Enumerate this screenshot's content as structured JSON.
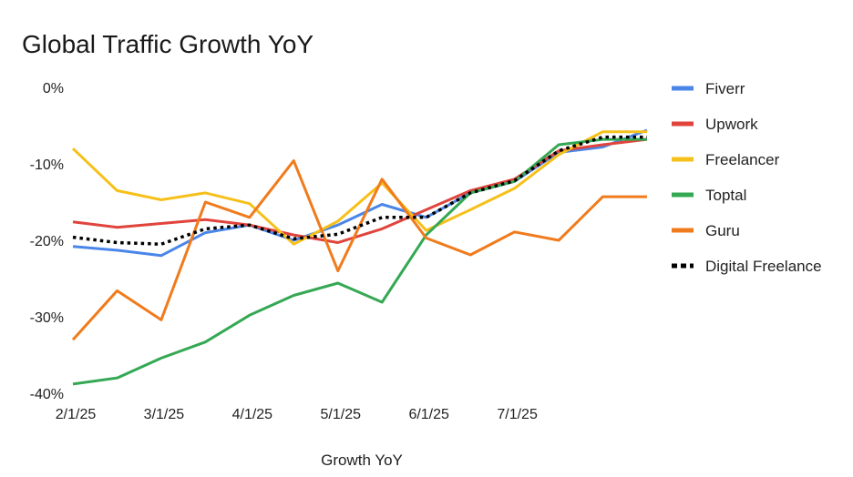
{
  "chart_data": {
    "type": "line",
    "title": "Global Traffic Growth YoY",
    "xlabel": "Growth YoY",
    "ylabel": "",
    "ylim": [
      -40,
      0
    ],
    "yticks": [
      0,
      -10,
      -20,
      -30,
      -40
    ],
    "ytick_labels": [
      "0%",
      "-10%",
      "-20%",
      "-30%",
      "-40%"
    ],
    "x": [
      "1/27/25",
      "2/10/25",
      "2/24/25",
      "3/10/25",
      "3/24/25",
      "4/7/25",
      "4/21/25",
      "5/5/25",
      "5/19/25",
      "6/2/25",
      "6/16/25",
      "6/30/25",
      "7/14/25",
      "7/28/25"
    ],
    "xticks": [
      "2/1/25",
      "3/1/25",
      "4/1/25",
      "5/1/25",
      "6/1/25",
      "7/1/25"
    ],
    "xtick_positions": [
      "1/27/25",
      "2/24/25",
      "3/24/25",
      "4/21/25",
      "5/19/25",
      "6/16/25"
    ],
    "legend_position": "right",
    "grid": false,
    "series": [
      {
        "name": "Fiverr",
        "color": "#4a86e8",
        "dash": false,
        "values": [
          -20.8,
          -21.3,
          -22.0,
          -19.0,
          -18.0,
          -20.0,
          -18.0,
          -15.3,
          -17.0,
          -13.8,
          -12.3,
          -8.5,
          -7.8,
          -5.6
        ]
      },
      {
        "name": "Upwork",
        "color": "#e0443c",
        "dash": false,
        "values": [
          -17.6,
          -18.3,
          -17.8,
          -17.3,
          -18.0,
          -19.3,
          -20.3,
          -18.5,
          -16.0,
          -13.5,
          -12.0,
          -8.3,
          -7.5,
          -6.8
        ]
      },
      {
        "name": "Freelancer",
        "color": "#f6c01a",
        "dash": false,
        "values": [
          -8.0,
          -13.5,
          -14.7,
          -13.8,
          -15.2,
          -20.5,
          -17.5,
          -12.5,
          -18.7,
          -16.0,
          -13.2,
          -8.8,
          -5.8,
          -5.8
        ]
      },
      {
        "name": "Toptal",
        "color": "#34a853",
        "dash": false,
        "values": [
          -38.8,
          -38.0,
          -35.4,
          -33.3,
          -29.8,
          -27.2,
          -25.6,
          -28.1,
          -19.3,
          -13.8,
          -12.3,
          -7.5,
          -6.8,
          -6.8
        ]
      },
      {
        "name": "Guru",
        "color": "#f07b1c",
        "dash": false,
        "values": [
          -33.0,
          -26.6,
          -30.4,
          -15.0,
          -17.0,
          -9.6,
          -24.0,
          -12.0,
          -19.7,
          -21.9,
          -18.9,
          -20.0,
          -14.3,
          -14.3
        ]
      },
      {
        "name": "Digital Freelance",
        "color": "#000000",
        "dash": true,
        "values": [
          -19.6,
          -20.3,
          -20.5,
          -18.5,
          -18.0,
          -19.8,
          -19.2,
          -17.0,
          -17.0,
          -13.8,
          -12.2,
          -8.3,
          -6.5,
          -6.5
        ]
      }
    ]
  }
}
